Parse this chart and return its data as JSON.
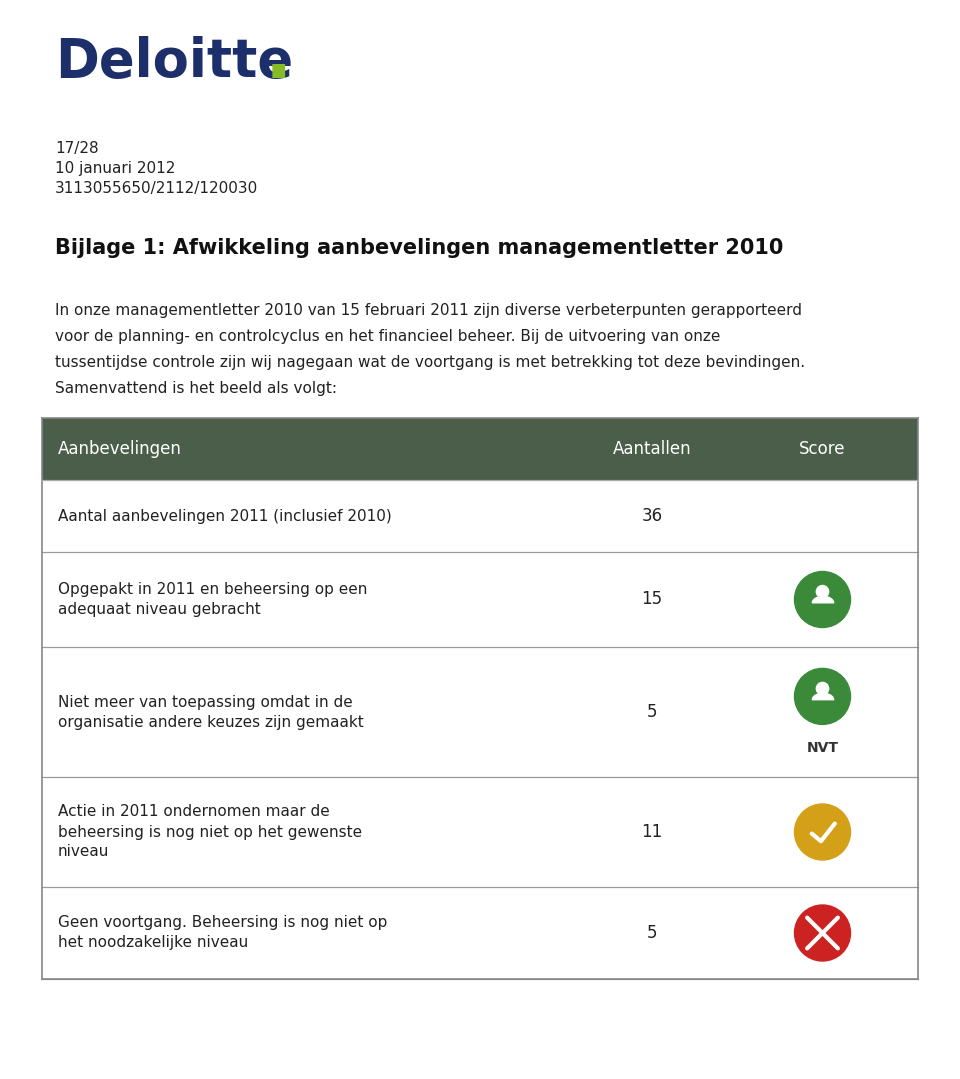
{
  "bg_color": "#ffffff",
  "logo_color": "#1c2f6b",
  "logo_dot_color": "#86bc25",
  "meta_lines": [
    "17/28",
    "10 januari 2012",
    "3113055650/2112/120030"
  ],
  "title": "Bijlage 1: Afwikkeling aanbevelingen managementletter 2010",
  "body_line1": "In onze managementletter 2010 van 15 februari 2011 zijn diverse verbeterpunten gerapporteerd",
  "body_line2": "voor de planning- en controlcyclus en het financieel beheer. Bij de uitvoering van onze",
  "body_line3": "tussentijdse controle zijn wij nagegaan wat de voortgang is met betrekking tot deze bevindingen.",
  "body_line4": "Samenvattend is het beeld als volgt:",
  "table_header_bg": "#4a5e4a",
  "col_header_aanbevelingen": "Aanbevelingen",
  "col_header_aantallen": "Aantallen",
  "col_header_score": "Score",
  "rows": [
    {
      "label_lines": [
        "Aantal aanbevelingen 2011 (inclusief 2010)"
      ],
      "aantal": "36",
      "score_type": "none"
    },
    {
      "label_lines": [
        "Opgepakt in 2011 en beheersing op een",
        "adequaat niveau gebracht"
      ],
      "aantal": "15",
      "score_type": "green_person"
    },
    {
      "label_lines": [
        "Niet meer van toepassing omdat in de",
        "organisatie andere keuzes zijn gemaakt"
      ],
      "aantal": "5",
      "score_type": "green_person_nvt"
    },
    {
      "label_lines": [
        "Actie in 2011 ondernomen maar de",
        "beheersing is nog niet op het gewenste",
        "niveau"
      ],
      "aantal": "11",
      "score_type": "yellow_check"
    },
    {
      "label_lines": [
        "Geen voortgang. Beheersing is nog niet op",
        "het noodzakelijke niveau"
      ],
      "aantal": "5",
      "score_type": "red_x"
    }
  ],
  "green_color": "#3a8a3a",
  "yellow_color": "#d4a017",
  "red_color": "#cc2222"
}
